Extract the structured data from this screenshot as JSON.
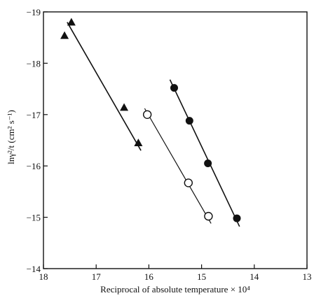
{
  "chart_data": {
    "type": "scatter",
    "xlabel": "Reciprocal of absolute temperature × 10⁴",
    "ylabel": "lnγ²/t (cm² s⁻¹)",
    "x_reversed": true,
    "xlim": [
      18,
      13
    ],
    "ylim": [
      -14,
      -19
    ],
    "x_ticks": [
      {
        "value": 18,
        "label": "18"
      },
      {
        "value": 17,
        "label": "17"
      },
      {
        "value": 16,
        "label": "16"
      },
      {
        "value": 15,
        "label": "15"
      },
      {
        "value": 14,
        "label": "14"
      },
      {
        "value": 13,
        "label": "13"
      }
    ],
    "y_ticks": [
      {
        "value": -19,
        "label": "−19"
      },
      {
        "value": -18,
        "label": "−18"
      },
      {
        "value": -17,
        "label": "−17"
      },
      {
        "value": -16,
        "label": "−16"
      },
      {
        "value": -15,
        "label": "−15"
      },
      {
        "value": -14,
        "label": "−14"
      }
    ],
    "grid": false,
    "series": [
      {
        "marker": "filled-triangle",
        "points": [
          {
            "x": 17.6,
            "y": -18.54
          },
          {
            "x": 17.47,
            "y": -18.8
          },
          {
            "x": 16.47,
            "y": -17.14
          },
          {
            "x": 16.2,
            "y": -16.45
          }
        ],
        "fit_line": {
          "x1": 17.55,
          "y1": -18.8,
          "x2": 16.15,
          "y2": -16.3
        }
      },
      {
        "marker": "open-circle",
        "points": [
          {
            "x": 16.03,
            "y": -17.0
          },
          {
            "x": 15.25,
            "y": -15.67
          },
          {
            "x": 14.87,
            "y": -15.02
          }
        ],
        "fit_line": {
          "x1": 16.08,
          "y1": -17.12,
          "x2": 14.82,
          "y2": -14.88
        }
      },
      {
        "marker": "filled-circle",
        "points": [
          {
            "x": 15.52,
            "y": -17.52
          },
          {
            "x": 15.23,
            "y": -16.88
          },
          {
            "x": 14.88,
            "y": -16.05
          },
          {
            "x": 14.33,
            "y": -14.98
          }
        ],
        "fit_line": {
          "x1": 15.6,
          "y1": -17.68,
          "x2": 14.28,
          "y2": -14.82
        }
      }
    ]
  }
}
